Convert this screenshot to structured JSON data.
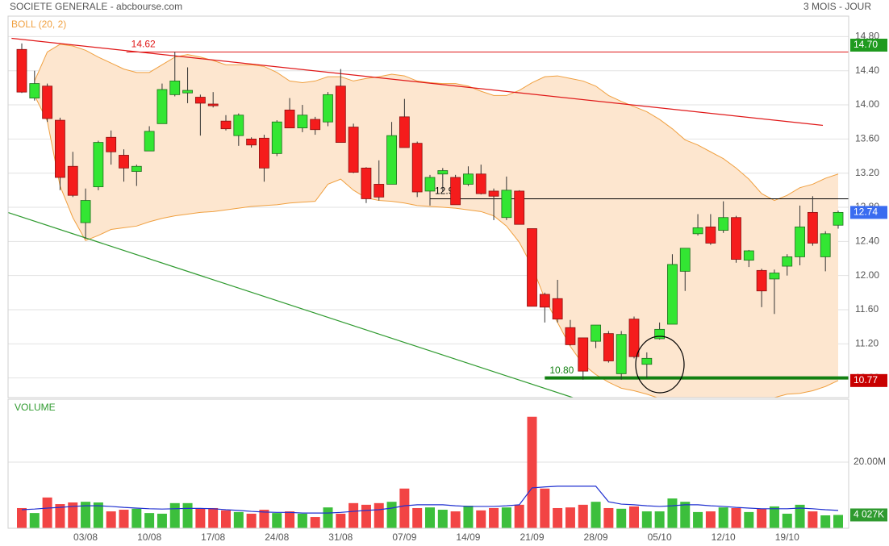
{
  "chart_data": [
    {
      "type": "candlestick",
      "title": "SOCIETE GENERALE - abcbourse.com",
      "subtitle": "3 MOIS - JOUR",
      "indicator": "BOLL (20, 2)",
      "categories": [
        null,
        null,
        null,
        null,
        null,
        "03/08",
        null,
        null,
        null,
        null,
        "10/08",
        null,
        null,
        null,
        null,
        "17/08",
        null,
        null,
        null,
        null,
        "24/08",
        null,
        null,
        null,
        null,
        "31/08",
        null,
        null,
        null,
        null,
        "07/09",
        null,
        null,
        null,
        null,
        "14/09",
        null,
        null,
        null,
        null,
        "21/09",
        null,
        null,
        null,
        null,
        "28/09",
        null,
        null,
        null,
        null,
        "05/10",
        null,
        null,
        null,
        null,
        "12/10",
        null,
        null,
        null,
        null,
        "19/10",
        null,
        null,
        null,
        null
      ],
      "open": [
        14.65,
        14.08,
        14.22,
        13.82,
        13.28,
        12.62,
        13.04,
        13.62,
        13.41,
        13.22,
        13.46,
        13.78,
        14.12,
        14.14,
        14.09,
        14.01,
        13.81,
        13.64,
        13.6,
        13.61,
        13.43,
        13.94,
        13.73,
        13.83,
        13.8,
        14.22,
        13.74,
        13.26,
        13.07,
        13.07,
        13.86,
        13.55,
        12.99,
        13.19,
        13.15,
        13.07,
        13.19,
        12.99,
        12.68,
        12.99,
        12.55,
        11.78,
        11.73,
        11.39,
        11.27,
        11.23,
        11.32,
        10.85,
        11.49,
        10.96,
        11.26,
        11.43,
        12.05,
        12.49,
        12.57,
        12.53,
        12.68,
        12.18,
        12.06,
        11.96,
        12.11,
        12.22,
        12.74,
        12.22,
        12.59
      ],
      "high": [
        14.72,
        14.4,
        14.25,
        13.85,
        13.45,
        13.02,
        13.58,
        13.7,
        13.48,
        13.3,
        13.75,
        14.25,
        14.62,
        14.44,
        14.12,
        14.15,
        13.88,
        13.9,
        13.62,
        13.65,
        13.82,
        14.08,
        14.0,
        13.86,
        14.15,
        14.42,
        13.78,
        13.27,
        13.35,
        13.8,
        14.07,
        13.57,
        13.18,
        13.26,
        13.18,
        13.28,
        13.3,
        13.02,
        13.16,
        13.0,
        12.55,
        11.8,
        11.95,
        11.48,
        11.27,
        11.42,
        11.35,
        11.35,
        11.52,
        11.1,
        11.45,
        12.25,
        12.32,
        12.72,
        12.72,
        12.87,
        12.7,
        12.3,
        12.08,
        12.07,
        12.25,
        12.82,
        12.93,
        12.52,
        12.76
      ],
      "low": [
        14.14,
        14.05,
        13.8,
        13.0,
        12.92,
        12.43,
        13.0,
        13.3,
        13.1,
        13.05,
        13.46,
        13.78,
        14.1,
        14.02,
        13.64,
        13.97,
        13.7,
        13.52,
        13.5,
        13.1,
        13.4,
        13.73,
        13.68,
        13.65,
        13.75,
        13.56,
        13.2,
        12.85,
        12.88,
        13.07,
        13.5,
        12.92,
        12.82,
        12.98,
        12.83,
        13.05,
        12.95,
        12.65,
        12.65,
        12.6,
        11.64,
        11.45,
        11.45,
        11.18,
        10.78,
        11.15,
        10.98,
        10.78,
        11.03,
        10.8,
        11.25,
        11.43,
        11.82,
        12.47,
        12.36,
        12.5,
        12.15,
        12.1,
        11.63,
        11.55,
        12.0,
        12.12,
        12.35,
        12.05,
        12.55
      ],
      "close": [
        14.15,
        14.25,
        13.84,
        13.15,
        12.94,
        12.88,
        13.56,
        13.45,
        13.26,
        13.28,
        13.69,
        14.18,
        14.28,
        14.17,
        14.02,
        13.99,
        13.72,
        13.88,
        13.53,
        13.26,
        13.8,
        13.73,
        13.88,
        13.71,
        14.12,
        13.56,
        13.21,
        12.9,
        12.92,
        13.64,
        13.5,
        12.98,
        13.15,
        13.23,
        12.83,
        13.19,
        12.96,
        12.93,
        13.0,
        12.6,
        11.64,
        11.63,
        11.49,
        11.19,
        10.88,
        11.42,
        11.0,
        11.31,
        11.05,
        11.03,
        11.37,
        12.13,
        12.32,
        12.56,
        12.38,
        12.68,
        12.19,
        12.29,
        11.82,
        12.03,
        12.22,
        12.57,
        12.38,
        12.49,
        12.74
      ],
      "last_label": "12.74",
      "up_color": "#33e633",
      "down_color": "#f51c1c",
      "bands": {
        "color": "#f0a040",
        "fill": "#fde6cf",
        "upper": [
          null,
          14.28,
          14.62,
          14.71,
          14.69,
          14.64,
          14.56,
          14.49,
          14.42,
          14.38,
          14.38,
          14.47,
          14.56,
          14.59,
          14.56,
          14.52,
          14.47,
          14.47,
          14.47,
          14.45,
          14.38,
          14.28,
          14.26,
          14.28,
          14.33,
          14.33,
          14.28,
          14.31,
          14.33,
          14.36,
          14.34,
          14.28,
          14.26,
          14.25,
          14.25,
          14.22,
          14.16,
          14.11,
          14.11,
          14.17,
          14.26,
          14.33,
          14.34,
          14.31,
          14.28,
          14.22,
          14.11,
          14.04,
          13.98,
          13.92,
          13.83,
          13.72,
          13.59,
          13.53,
          13.45,
          13.37,
          13.26,
          13.13,
          12.96,
          12.88,
          12.94,
          13.03,
          13.07,
          13.14,
          13.19
        ],
        "lower": [
          null,
          14.11,
          13.81,
          13.05,
          12.68,
          12.41,
          12.47,
          12.54,
          12.56,
          12.58,
          12.63,
          12.67,
          12.7,
          12.72,
          12.74,
          12.75,
          12.77,
          12.79,
          12.81,
          12.82,
          12.83,
          12.85,
          12.86,
          12.87,
          13.07,
          13.13,
          13.0,
          12.91,
          12.88,
          12.87,
          12.85,
          12.82,
          12.81,
          12.8,
          12.79,
          12.77,
          12.75,
          12.7,
          12.58,
          12.39,
          12.11,
          11.73,
          11.45,
          11.17,
          10.96,
          10.84,
          10.75,
          10.68,
          10.65,
          10.61,
          10.56,
          10.54,
          10.54,
          10.54,
          10.54,
          10.54,
          10.54,
          10.54,
          10.54,
          10.57,
          10.61,
          10.62,
          10.65,
          10.7,
          10.77
        ],
        "last_label": "10.77",
        "tag_color": "#c80000"
      },
      "levels": [
        {
          "value": 14.62,
          "label": "14.62",
          "start": 8.2,
          "color": "#e01818",
          "width": 1,
          "text_color": "#e01818"
        },
        {
          "value": 12.9,
          "label": "12.90",
          "start": 32,
          "color": "#000000",
          "width": 1,
          "text_color": "#000000"
        },
        {
          "value": 10.8,
          "label": "10.80",
          "start": 41,
          "color": "#128012",
          "width": 4,
          "text_color": "#128012"
        }
      ],
      "trend_lines": [
        {
          "color": "#e01818",
          "points": [
            [
              -0.8,
              14.78
            ],
            [
              62.8,
              13.76
            ]
          ]
        },
        {
          "color": "#2f9a2f",
          "points": [
            [
              -1.1,
              12.74
            ],
            [
              43.2,
              10.57
            ]
          ]
        }
      ],
      "tags": [
        {
          "value": 14.7,
          "label": "14.70",
          "color": "#1f9a1f"
        }
      ],
      "last_tag_color": "#3a6cf0",
      "ylim": [
        10.57,
        15.04
      ],
      "yticks": [
        {
          "value": 10.8,
          "label": "10.80"
        },
        {
          "value": 11.2,
          "label": "11.20"
        },
        {
          "value": 11.6,
          "label": "11.60"
        },
        {
          "value": 12,
          "label": "12.00"
        },
        {
          "value": 12.4,
          "label": "12.40"
        },
        {
          "value": 12.8,
          "label": "12.80"
        },
        {
          "value": 13.2,
          "label": "13.20"
        },
        {
          "value": 13.6,
          "label": "13.60"
        },
        {
          "value": 14,
          "label": "14.00"
        },
        {
          "value": 14.4,
          "label": "14.40"
        },
        {
          "value": 14.8,
          "label": "14.80"
        }
      ],
      "grid": true
    },
    {
      "type": "bar",
      "title": "VOLUME",
      "values": [
        6.1,
        4.6,
        9.3,
        7.3,
        7.8,
        8.0,
        7.8,
        5.1,
        5.6,
        5.9,
        4.6,
        4.4,
        7.6,
        7.6,
        5.9,
        6.1,
        5.4,
        4.9,
        4.4,
        5.6,
        4.6,
        5.1,
        4.4,
        3.4,
        6.3,
        4.4,
        7.6,
        7.1,
        7.6,
        8.0,
        12.0,
        6.1,
        6.3,
        5.6,
        5.1,
        6.8,
        5.4,
        6.1,
        6.3,
        7.1,
        33.7,
        12.0,
        6.1,
        6.3,
        7.1,
        8.0,
        6.1,
        5.9,
        6.6,
        5.1,
        5.1,
        9.0,
        8.0,
        4.9,
        5.1,
        6.3,
        6.1,
        4.9,
        5.9,
        6.6,
        4.4,
        7.1,
        5.1,
        3.9,
        4.027
      ],
      "last_label": "4 027K",
      "average": {
        "color": "#2030d0",
        "values": [
          5.6,
          5.8,
          6.1,
          6.3,
          6.6,
          6.8,
          6.8,
          6.6,
          6.3,
          6.1,
          5.9,
          5.8,
          5.9,
          6.0,
          6.0,
          5.9,
          5.6,
          5.4,
          5.1,
          4.9,
          4.8,
          4.8,
          4.6,
          4.6,
          4.6,
          4.8,
          5.1,
          5.4,
          5.6,
          6.1,
          6.8,
          7.1,
          7.1,
          7.1,
          6.8,
          6.6,
          6.6,
          6.6,
          6.8,
          7.1,
          12.2,
          12.5,
          12.7,
          12.7,
          12.7,
          12.7,
          8.0,
          7.3,
          7.1,
          6.8,
          6.6,
          6.8,
          7.1,
          7.1,
          6.8,
          6.6,
          6.3,
          6.1,
          5.9,
          5.9,
          5.9,
          6.1,
          5.9,
          5.6,
          5.4
        ]
      },
      "ylim": [
        0,
        39
      ],
      "yticks": [
        {
          "value": 20,
          "label": "20.00M"
        }
      ],
      "grid": true
    }
  ]
}
